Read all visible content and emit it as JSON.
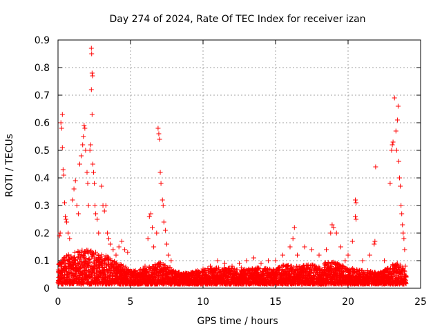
{
  "chart_data": {
    "type": "scatter",
    "title": "Day 274 of 2024, Rate Of TEC Index for receiver izan",
    "xlabel": "GPS time / hours",
    "ylabel": "ROTI / TECUs",
    "xlim": [
      0,
      25
    ],
    "ylim": [
      0,
      0.9
    ],
    "x_ticks": [
      "0",
      "5",
      "10",
      "15",
      "20",
      "25"
    ],
    "y_ticks": [
      "0",
      "0.1",
      "0.2",
      "0.3",
      "0.4",
      "0.5",
      "0.6",
      "0.7",
      "0.8",
      "0.9"
    ],
    "grid": true,
    "marker": "+",
    "series": [
      {
        "color": "#ff0000",
        "points": [
          [
            0.1,
            0.19
          ],
          [
            0.15,
            0.2
          ],
          [
            0.2,
            0.6
          ],
          [
            0.25,
            0.58
          ],
          [
            0.3,
            0.63
          ],
          [
            0.3,
            0.51
          ],
          [
            0.35,
            0.43
          ],
          [
            0.4,
            0.41
          ],
          [
            0.45,
            0.31
          ],
          [
            0.5,
            0.26
          ],
          [
            0.55,
            0.25
          ],
          [
            0.6,
            0.24
          ],
          [
            0.7,
            0.2
          ],
          [
            0.8,
            0.18
          ],
          [
            1.0,
            0.32
          ],
          [
            1.1,
            0.36
          ],
          [
            1.2,
            0.39
          ],
          [
            1.3,
            0.3
          ],
          [
            1.4,
            0.27
          ],
          [
            1.5,
            0.45
          ],
          [
            1.6,
            0.48
          ],
          [
            1.7,
            0.52
          ],
          [
            1.75,
            0.55
          ],
          [
            1.8,
            0.59
          ],
          [
            1.85,
            0.58
          ],
          [
            1.9,
            0.5
          ],
          [
            2.0,
            0.42
          ],
          [
            2.05,
            0.38
          ],
          [
            2.1,
            0.3
          ],
          [
            2.2,
            0.5
          ],
          [
            2.25,
            0.52
          ],
          [
            2.3,
            0.87
          ],
          [
            2.32,
            0.85
          ],
          [
            2.35,
            0.78
          ],
          [
            2.38,
            0.77
          ],
          [
            2.3,
            0.72
          ],
          [
            2.35,
            0.63
          ],
          [
            2.4,
            0.45
          ],
          [
            2.45,
            0.42
          ],
          [
            2.5,
            0.38
          ],
          [
            2.55,
            0.3
          ],
          [
            2.6,
            0.27
          ],
          [
            2.7,
            0.25
          ],
          [
            2.8,
            0.2
          ],
          [
            3.0,
            0.37
          ],
          [
            3.1,
            0.3
          ],
          [
            3.2,
            0.28
          ],
          [
            3.3,
            0.3
          ],
          [
            3.4,
            0.2
          ],
          [
            3.5,
            0.18
          ],
          [
            3.6,
            0.16
          ],
          [
            3.8,
            0.14
          ],
          [
            4.0,
            0.12
          ],
          [
            4.2,
            0.15
          ],
          [
            4.4,
            0.17
          ],
          [
            4.6,
            0.14
          ],
          [
            4.8,
            0.13
          ],
          [
            6.0,
            0.08
          ],
          [
            6.2,
            0.18
          ],
          [
            6.3,
            0.26
          ],
          [
            6.4,
            0.27
          ],
          [
            6.5,
            0.22
          ],
          [
            6.6,
            0.15
          ],
          [
            6.8,
            0.2
          ],
          [
            6.9,
            0.58
          ],
          [
            6.95,
            0.56
          ],
          [
            7.0,
            0.54
          ],
          [
            7.05,
            0.42
          ],
          [
            7.1,
            0.38
          ],
          [
            7.2,
            0.32
          ],
          [
            7.25,
            0.3
          ],
          [
            7.3,
            0.24
          ],
          [
            7.4,
            0.21
          ],
          [
            7.5,
            0.16
          ],
          [
            7.6,
            0.12
          ],
          [
            7.8,
            0.1
          ],
          [
            8.5,
            0.05
          ],
          [
            9.0,
            0.05
          ],
          [
            9.5,
            0.06
          ],
          [
            10.0,
            0.07
          ],
          [
            10.5,
            0.08
          ],
          [
            11.0,
            0.1
          ],
          [
            11.5,
            0.09
          ],
          [
            12.0,
            0.08
          ],
          [
            12.5,
            0.09
          ],
          [
            13.0,
            0.1
          ],
          [
            13.5,
            0.11
          ],
          [
            14.0,
            0.09
          ],
          [
            14.5,
            0.1
          ],
          [
            15.0,
            0.1
          ],
          [
            15.5,
            0.12
          ],
          [
            16.0,
            0.15
          ],
          [
            16.2,
            0.18
          ],
          [
            16.3,
            0.22
          ],
          [
            16.5,
            0.12
          ],
          [
            17.0,
            0.15
          ],
          [
            17.5,
            0.14
          ],
          [
            18.0,
            0.12
          ],
          [
            18.5,
            0.14
          ],
          [
            18.8,
            0.2
          ],
          [
            18.9,
            0.23
          ],
          [
            19.0,
            0.22
          ],
          [
            19.2,
            0.2
          ],
          [
            19.5,
            0.15
          ],
          [
            19.8,
            0.1
          ],
          [
            20.0,
            0.12
          ],
          [
            20.3,
            0.17
          ],
          [
            20.5,
            0.32
          ],
          [
            20.55,
            0.31
          ],
          [
            20.5,
            0.26
          ],
          [
            20.55,
            0.25
          ],
          [
            21.0,
            0.1
          ],
          [
            21.5,
            0.12
          ],
          [
            21.8,
            0.16
          ],
          [
            21.85,
            0.17
          ],
          [
            21.9,
            0.44
          ],
          [
            22.5,
            0.1
          ],
          [
            22.9,
            0.38
          ],
          [
            23.0,
            0.5
          ],
          [
            23.05,
            0.52
          ],
          [
            23.1,
            0.53
          ],
          [
            23.2,
            0.69
          ],
          [
            23.3,
            0.57
          ],
          [
            23.35,
            0.5
          ],
          [
            23.4,
            0.61
          ],
          [
            23.45,
            0.66
          ],
          [
            23.5,
            0.46
          ],
          [
            23.55,
            0.4
          ],
          [
            23.6,
            0.37
          ],
          [
            23.65,
            0.3
          ],
          [
            23.7,
            0.27
          ],
          [
            23.75,
            0.23
          ],
          [
            23.8,
            0.2
          ],
          [
            23.85,
            0.18
          ],
          [
            23.9,
            0.14
          ],
          [
            23.95,
            0.08
          ],
          [
            24.0,
            0.04
          ]
        ],
        "dense_band": [
          [
            0,
            0.08
          ],
          [
            0.5,
            0.1
          ],
          [
            1,
            0.12
          ],
          [
            1.5,
            0.12
          ],
          [
            2,
            0.13
          ],
          [
            2.5,
            0.12
          ],
          [
            3,
            0.11
          ],
          [
            3.5,
            0.1
          ],
          [
            4,
            0.08
          ],
          [
            4.5,
            0.07
          ],
          [
            5,
            0.05
          ],
          [
            5.5,
            0.05
          ],
          [
            6,
            0.06
          ],
          [
            6.5,
            0.07
          ],
          [
            7,
            0.08
          ],
          [
            7.5,
            0.07
          ],
          [
            8,
            0.05
          ],
          [
            8.5,
            0.04
          ],
          [
            9,
            0.04
          ],
          [
            9.5,
            0.05
          ],
          [
            10,
            0.05
          ],
          [
            10.5,
            0.06
          ],
          [
            11,
            0.06
          ],
          [
            11.5,
            0.06
          ],
          [
            12,
            0.06
          ],
          [
            12.5,
            0.06
          ],
          [
            13,
            0.06
          ],
          [
            13.5,
            0.06
          ],
          [
            14,
            0.06
          ],
          [
            14.5,
            0.06
          ],
          [
            15,
            0.06
          ],
          [
            15.5,
            0.07
          ],
          [
            16,
            0.07
          ],
          [
            16.5,
            0.07
          ],
          [
            17,
            0.07
          ],
          [
            17.5,
            0.07
          ],
          [
            18,
            0.07
          ],
          [
            18.5,
            0.08
          ],
          [
            19,
            0.08
          ],
          [
            19.5,
            0.07
          ],
          [
            20,
            0.06
          ],
          [
            20.5,
            0.06
          ],
          [
            21,
            0.05
          ],
          [
            21.5,
            0.05
          ],
          [
            22,
            0.04
          ],
          [
            22.5,
            0.05
          ],
          [
            23,
            0.07
          ],
          [
            23.5,
            0.08
          ],
          [
            24,
            0.04
          ]
        ]
      }
    ]
  }
}
